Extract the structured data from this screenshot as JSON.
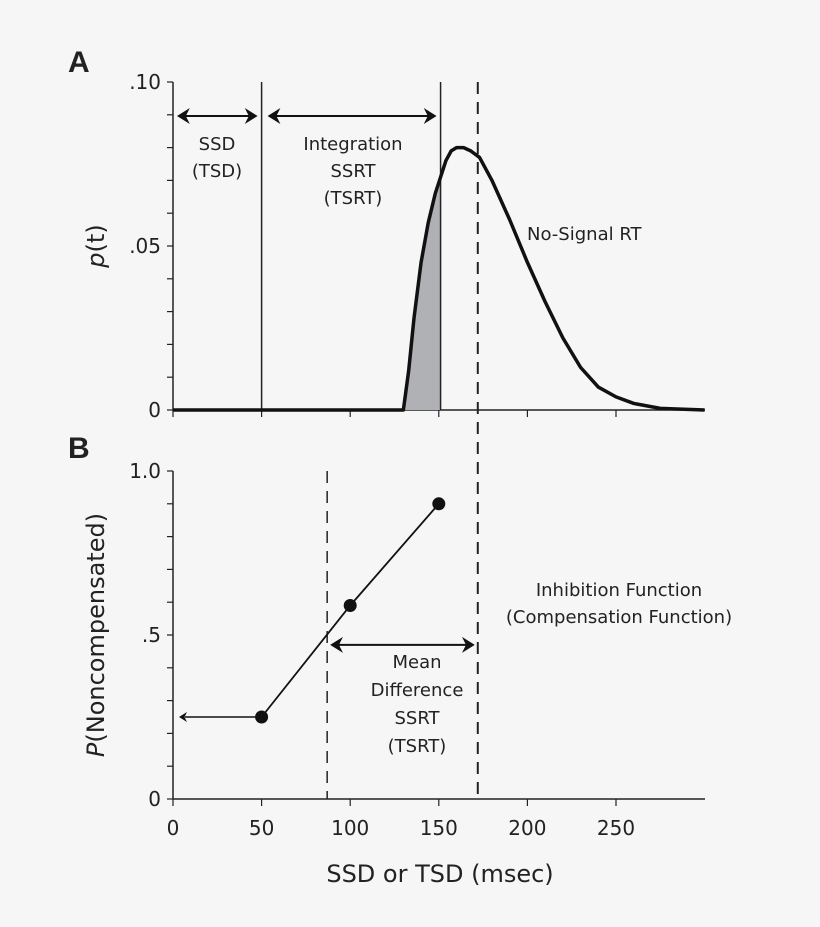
{
  "chart_data": [
    {
      "panel": "A",
      "type": "area",
      "ylabel_italic": "p",
      "ylabel_rest": "(t)",
      "ylim": [
        0,
        0.1
      ],
      "yticks": [
        ".10",
        ".05",
        "0"
      ],
      "ytick_values": [
        0.1,
        0.05,
        0
      ],
      "xlim": [
        0,
        300
      ],
      "xtick_values": [
        0,
        50,
        100,
        150,
        200,
        250
      ],
      "series": [
        {
          "name": "No-Signal RT",
          "x": [
            0,
            130,
            133,
            136,
            140,
            144,
            148,
            151,
            154,
            157,
            160,
            164,
            168,
            173,
            180,
            190,
            200,
            210,
            220,
            230,
            240,
            250,
            260,
            275,
            300
          ],
          "y": [
            0,
            0,
            0.012,
            0.028,
            0.045,
            0.057,
            0.066,
            0.071,
            0.076,
            0.079,
            0.08,
            0.08,
            0.079,
            0.077,
            0.07,
            0.058,
            0.045,
            0.033,
            0.022,
            0.013,
            0.007,
            0.004,
            0.002,
            0.0005,
            0
          ]
        }
      ],
      "shaded_region": [
        130,
        151
      ],
      "vertical_lines": [
        {
          "x": 50,
          "style": "solid"
        },
        {
          "x": 151,
          "style": "solid"
        },
        {
          "x": 172,
          "style": "dashed"
        }
      ],
      "annotations": {
        "ssd": [
          "SSD",
          "(TSD)"
        ],
        "integration": [
          "Integration",
          "SSRT",
          "(TSRT)"
        ],
        "nosignal": "No-Signal RT"
      },
      "color": "#111111",
      "shade_color": "#b0b1b4"
    },
    {
      "panel": "B",
      "type": "line",
      "ylabel_italic": "P",
      "ylabel_rest": "(Noncompensated)",
      "xlabel": "SSD or TSD (msec)",
      "ylim": [
        0,
        1.0
      ],
      "yticks": [
        "1.0",
        ".5",
        "0"
      ],
      "ytick_values": [
        1.0,
        0.5,
        0
      ],
      "xlim": [
        0,
        300
      ],
      "xticks": [
        "0",
        "50",
        "100",
        "150",
        "200",
        "250"
      ],
      "xtick_values": [
        0,
        50,
        100,
        150,
        200,
        250
      ],
      "series": [
        {
          "name": "Inhibition Function (Compensation Function)",
          "x": [
            50,
            100,
            150
          ],
          "y": [
            0.25,
            0.59,
            0.9
          ]
        }
      ],
      "vertical_lines": [
        {
          "x": 87,
          "style": "dashed"
        },
        {
          "x": 172,
          "style": "dashed"
        }
      ],
      "annotations": {
        "function": [
          "Inhibition Function",
          "(Compensation Function)"
        ],
        "mean": [
          "Mean",
          "Difference",
          "SSRT",
          "(TSRT)"
        ]
      },
      "color": "#111111"
    }
  ]
}
